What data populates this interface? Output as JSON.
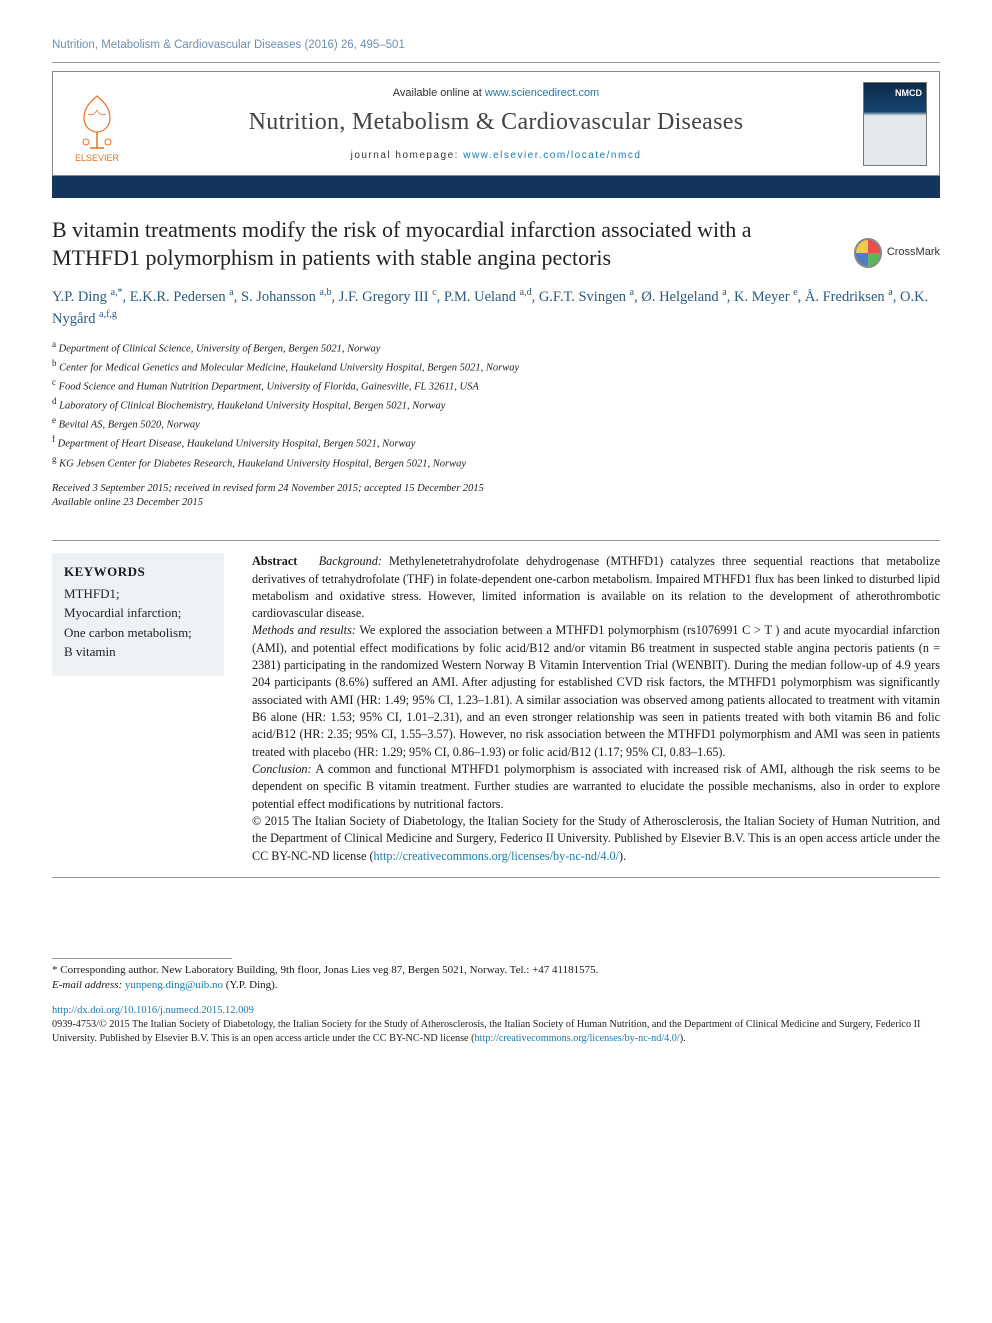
{
  "running_head": "Nutrition, Metabolism & Cardiovascular Diseases (2016) 26, 495–501",
  "header": {
    "available_prefix": "Available online at ",
    "available_link": "www.sciencedirect.com",
    "journal_name": "Nutrition, Metabolism & Cardiovascular Diseases",
    "homepage_prefix": "journal homepage: ",
    "homepage_link": "www.elsevier.com/locate/nmcd",
    "elsevier_label": "ELSEVIER",
    "cover_label": "NMCD"
  },
  "crossmark": "CrossMark",
  "title": "B vitamin treatments modify the risk of myocardial infarction associated with a MTHFD1 polymorphism in patients with stable angina pectoris",
  "authors_html": "Y.P. Ding <sup>a,*</sup>, E.K.R. Pedersen <sup>a</sup>, S. Johansson <sup>a,b</sup>, J.F. Gregory III <sup>c</sup>, P.M. Ueland <sup>a,d</sup>, G.F.T. Svingen <sup>a</sup>, Ø. Helgeland <sup>a</sup>, K. Meyer <sup>e</sup>, Å. Fredriksen <sup>a</sup>, O.K. Nygård <sup>a,f,g</sup>",
  "affiliations": [
    {
      "sup": "a",
      "text": "Department of Clinical Science, University of Bergen, Bergen 5021, Norway"
    },
    {
      "sup": "b",
      "text": "Center for Medical Genetics and Molecular Medicine, Haukeland University Hospital, Bergen 5021, Norway"
    },
    {
      "sup": "c",
      "text": "Food Science and Human Nutrition Department, University of Florida, Gainesville, FL 32611, USA"
    },
    {
      "sup": "d",
      "text": "Laboratory of Clinical Biochemistry, Haukeland University Hospital, Bergen 5021, Norway"
    },
    {
      "sup": "e",
      "text": "Bevital AS, Bergen 5020, Norway"
    },
    {
      "sup": "f",
      "text": "Department of Heart Disease, Haukeland University Hospital, Bergen 5021, Norway"
    },
    {
      "sup": "g",
      "text": "KG Jebsen Center for Diabetes Research, Haukeland University Hospital, Bergen 5021, Norway"
    }
  ],
  "history": {
    "line1": "Received 3 September 2015; received in revised form 24 November 2015; accepted 15 December 2015",
    "line2": "Available online 23 December 2015"
  },
  "keywords": {
    "head": "KEYWORDS",
    "items": "MTHFD1;\nMyocardial infarction;\nOne carbon metabolism;\nB vitamin"
  },
  "abstract": {
    "label": "Abstract",
    "background_head": "Background:",
    "background": " Methylenetetrahydrofolate dehydrogenase (MTHFD1) catalyzes three sequential reactions that metabolize derivatives of tetrahydrofolate (THF) in folate-dependent one-carbon metabolism. Impaired MTHFD1 flux has been linked to disturbed lipid metabolism and oxidative stress. However, limited information is available on its relation to the development of atherothrombotic cardiovascular disease.",
    "methods_head": "Methods and results:",
    "methods": " We explored the association between a MTHFD1 polymorphism (rs1076991 C > T ) and acute myocardial infarction (AMI), and potential effect modifications by folic acid/B12 and/or vitamin B6 treatment in suspected stable angina pectoris patients (n = 2381) participating in the randomized Western Norway B Vitamin Intervention Trial (WENBIT). During the median follow-up of 4.9 years 204 participants (8.6%) suffered an AMI. After adjusting for established CVD risk factors, the MTHFD1 polymorphism was significantly associated with AMI (HR: 1.49; 95% CI, 1.23–1.81). A similar association was observed among patients allocated to treatment with vitamin B6 alone (HR: 1.53; 95% CI, 1.01–2.31), and an even stronger relationship was seen in patients treated with both vitamin B6 and folic acid/B12 (HR: 2.35; 95% CI, 1.55–3.57). However, no risk association between the MTHFD1 polymorphism and AMI was seen in patients treated with placebo (HR: 1.29; 95% CI, 0.86–1.93) or folic acid/B12 (1.17; 95% CI, 0.83–1.65).",
    "conclusion_head": "Conclusion:",
    "conclusion": " A common and functional MTHFD1 polymorphism is associated with increased risk of AMI, although the risk seems to be dependent on specific B vitamin treatment. Further studies are warranted to elucidate the possible mechanisms, also in order to explore potential effect modifications by nutritional factors.",
    "copyright": "© 2015 The Italian Society of Diabetology, the Italian Society for the Study of Atherosclerosis, the Italian Society of Human Nutrition, and the Department of Clinical Medicine and Surgery, Federico II University. Published by Elsevier B.V. This is an open access article under the CC BY-NC-ND license (",
    "cc_link": "http://creativecommons.org/licenses/by-nc-nd/4.0/",
    "copyright_close": ")."
  },
  "corresponding": {
    "star": "*",
    "text": " Corresponding author. New Laboratory Building, 9th floor, Jonas Lies veg 87, Bergen 5021, Norway. Tel.: +47 41181575.",
    "email_label": "E-mail address:",
    "email": "yunpeng.ding@uib.no",
    "email_suffix": " (Y.P. Ding)."
  },
  "footer": {
    "doi": "http://dx.doi.org/10.1016/j.numecd.2015.12.009",
    "issn_line": "0939-4753/© 2015 The Italian Society of Diabetology, the Italian Society for the Study of Atherosclerosis, the Italian Society of Human Nutrition, and the Department of Clinical Medicine and Surgery, Federico II University. Published by Elsevier B.V. This is an open access article under the CC BY-NC-ND license (",
    "cc_link": "http://creativecommons.org/licenses/by-nc-nd/4.0/",
    "close": ")."
  },
  "colors": {
    "bar": "#13355b",
    "link": "#177bb3",
    "author": "#2a5a82",
    "kw_bg": "#eef2f5",
    "elsevier": "#e9711c"
  }
}
